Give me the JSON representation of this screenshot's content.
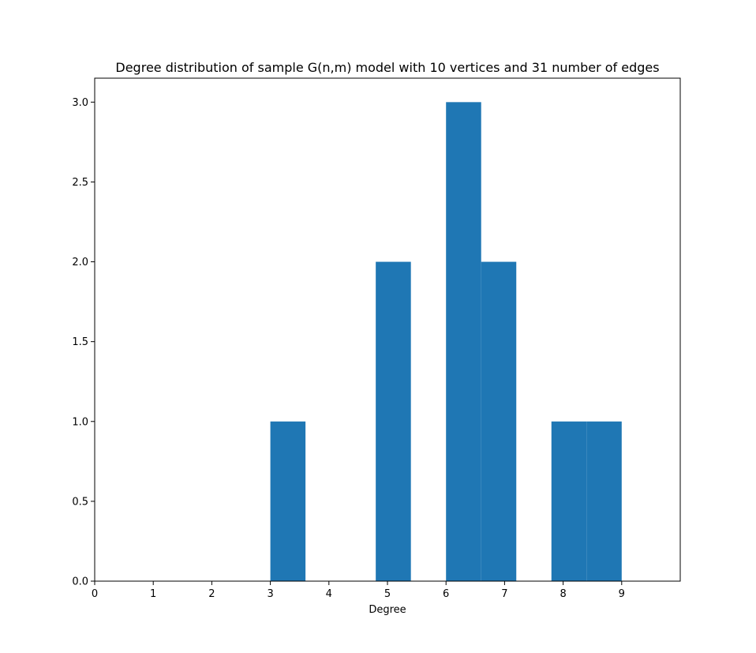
{
  "chart_data": {
    "type": "bar",
    "title": "Degree distribution of sample G(n,m) model with 10 vertices and 31 number of edges",
    "xlabel": "Degree",
    "ylabel": "",
    "xlim": [
      0,
      10
    ],
    "ylim": [
      0,
      3.15
    ],
    "x_ticks": [
      "0",
      "1",
      "2",
      "3",
      "4",
      "5",
      "6",
      "7",
      "8",
      "9"
    ],
    "y_ticks": [
      "0.0",
      "0.5",
      "1.0",
      "1.5",
      "2.0",
      "2.5",
      "3.0"
    ],
    "bin_edges": [
      3.0,
      3.6,
      4.2,
      4.8,
      5.4,
      6.0,
      6.6,
      7.2,
      7.8,
      8.4,
      9.0
    ],
    "values": [
      1,
      0,
      0,
      2,
      0,
      3,
      2,
      0,
      1,
      1
    ],
    "grid": false,
    "colors": {
      "bar": "#1f77b4"
    }
  }
}
